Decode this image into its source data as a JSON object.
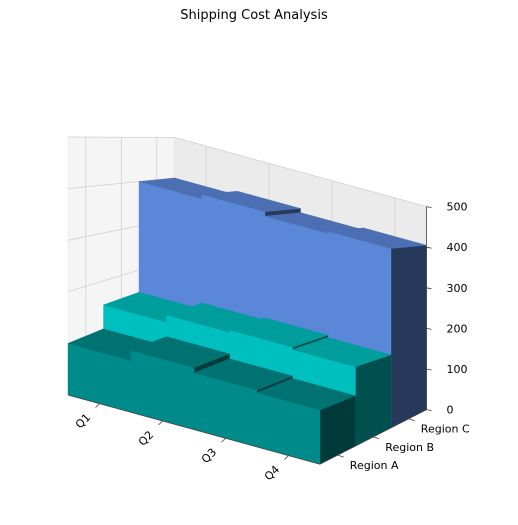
{
  "chart_data": {
    "type": "bar3d",
    "title": "Shipping Cost Analysis",
    "categories": [
      "Q1",
      "Q2",
      "Q3",
      "Q4"
    ],
    "series": [
      {
        "name": "Region A",
        "values": [
          100,
          120,
          110,
          105
        ],
        "color": "#008b8b"
      },
      {
        "name": "Region B",
        "values": [
          150,
          165,
          170,
          165
        ],
        "color": "#00bfbf"
      },
      {
        "name": "Region C",
        "values": [
          400,
          410,
          400,
          405
        ],
        "color": "#5b87d9"
      }
    ],
    "zlim": [
      0,
      500
    ],
    "zticks": [
      0,
      100,
      200,
      300,
      400,
      500
    ],
    "grid": true
  }
}
